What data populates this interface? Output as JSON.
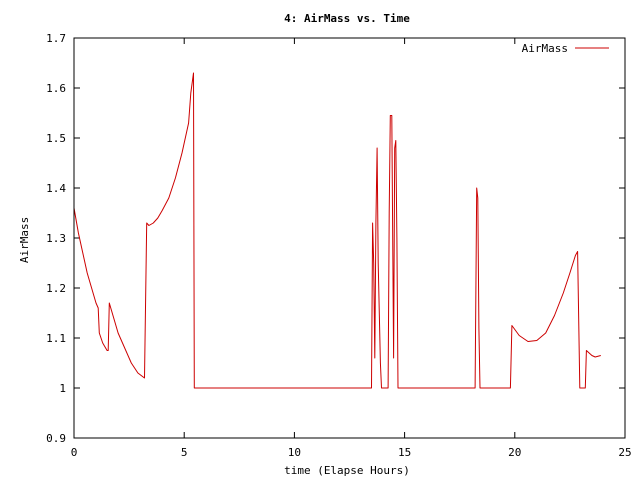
{
  "chart_data": {
    "type": "line",
    "title": "4: AirMass vs. Time",
    "xlabel": "time (Elapse Hours)",
    "ylabel": "AirMass",
    "xlim": [
      0,
      25
    ],
    "ylim": [
      0.9,
      1.7
    ],
    "xticks": [
      0,
      5,
      10,
      15,
      20,
      25
    ],
    "xtick_labels": [
      "0",
      "5",
      "10",
      "15",
      "20",
      "25"
    ],
    "yticks": [
      0.9,
      1.0,
      1.1,
      1.2,
      1.3,
      1.4,
      1.5,
      1.6,
      1.7
    ],
    "ytick_labels": [
      "0.9",
      "1",
      "1.1",
      "1.2",
      "1.3",
      "1.4",
      "1.5",
      "1.6",
      "1.7"
    ],
    "grid": false,
    "legend": "top-right",
    "series": [
      {
        "name": "AirMass",
        "color": "#cc0000",
        "points": [
          [
            0.0,
            1.36
          ],
          [
            0.2,
            1.31
          ],
          [
            0.4,
            1.27
          ],
          [
            0.6,
            1.23
          ],
          [
            0.8,
            1.2
          ],
          [
            1.0,
            1.17
          ],
          [
            1.1,
            1.16
          ],
          [
            1.15,
            1.11
          ],
          [
            1.3,
            1.09
          ],
          [
            1.5,
            1.075
          ],
          [
            1.55,
            1.075
          ],
          [
            1.6,
            1.17
          ],
          [
            1.8,
            1.14
          ],
          [
            2.0,
            1.11
          ],
          [
            2.3,
            1.08
          ],
          [
            2.6,
            1.05
          ],
          [
            2.9,
            1.03
          ],
          [
            3.2,
            1.02
          ],
          [
            3.3,
            1.33
          ],
          [
            3.4,
            1.325
          ],
          [
            3.6,
            1.33
          ],
          [
            3.8,
            1.34
          ],
          [
            4.0,
            1.355
          ],
          [
            4.3,
            1.38
          ],
          [
            4.6,
            1.42
          ],
          [
            4.9,
            1.47
          ],
          [
            5.2,
            1.53
          ],
          [
            5.3,
            1.59
          ],
          [
            5.42,
            1.63
          ],
          [
            5.46,
            1.0
          ],
          [
            13.5,
            1.0
          ],
          [
            13.55,
            1.33
          ],
          [
            13.6,
            1.25
          ],
          [
            13.65,
            1.06
          ],
          [
            13.7,
            1.33
          ],
          [
            13.75,
            1.48
          ],
          [
            13.8,
            1.25
          ],
          [
            13.9,
            1.05
          ],
          [
            13.95,
            1.0
          ],
          [
            14.25,
            1.0
          ],
          [
            14.3,
            1.35
          ],
          [
            14.35,
            1.545
          ],
          [
            14.42,
            1.545
          ],
          [
            14.5,
            1.06
          ],
          [
            14.55,
            1.48
          ],
          [
            14.6,
            1.495
          ],
          [
            14.65,
            1.3
          ],
          [
            14.7,
            1.0
          ],
          [
            18.2,
            1.0
          ],
          [
            18.27,
            1.4
          ],
          [
            18.32,
            1.38
          ],
          [
            18.37,
            1.12
          ],
          [
            18.42,
            1.0
          ],
          [
            19.8,
            1.0
          ],
          [
            19.87,
            1.125
          ],
          [
            20.2,
            1.105
          ],
          [
            20.6,
            1.093
          ],
          [
            21.0,
            1.095
          ],
          [
            21.4,
            1.11
          ],
          [
            21.8,
            1.145
          ],
          [
            22.2,
            1.19
          ],
          [
            22.5,
            1.23
          ],
          [
            22.75,
            1.265
          ],
          [
            22.85,
            1.273
          ],
          [
            22.95,
            1.0
          ],
          [
            23.2,
            1.0
          ],
          [
            23.25,
            1.075
          ],
          [
            23.5,
            1.065
          ],
          [
            23.65,
            1.062
          ],
          [
            23.9,
            1.065
          ]
        ]
      }
    ]
  }
}
